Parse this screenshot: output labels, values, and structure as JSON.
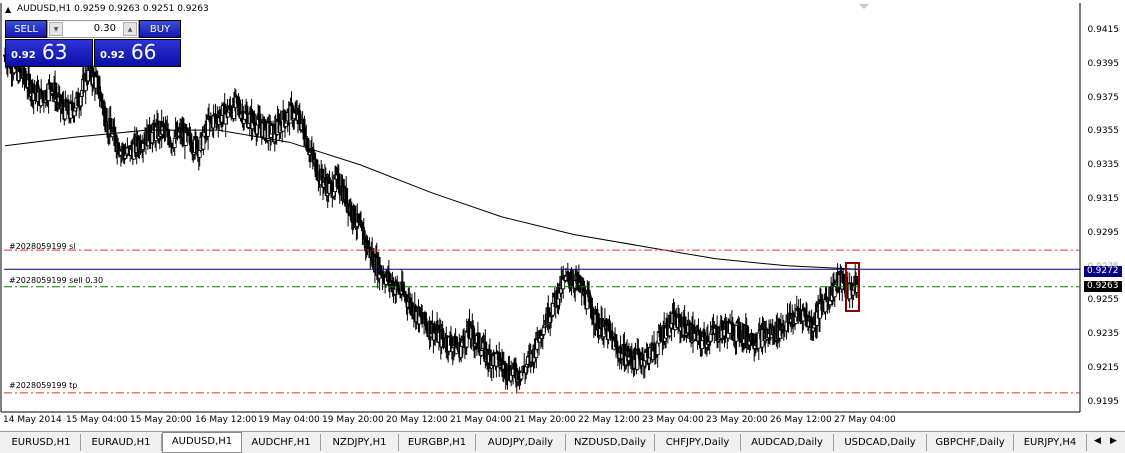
{
  "header": {
    "symbol_tf": "AUDUSD,H1",
    "ohlc": "0.9259 0.9263 0.9251 0.9263"
  },
  "one_click": {
    "sell_label": "SELL",
    "buy_label": "BUY",
    "lot": "0.30",
    "sell_prefix": "0.92",
    "sell_big": "63",
    "buy_prefix": "0.92",
    "buy_big": "66"
  },
  "price_axis": [
    "0.9415",
    "0.9395",
    "0.9375",
    "0.9355",
    "0.9335",
    "0.9315",
    "0.9295",
    "0.9275",
    "0.9255",
    "0.9235",
    "0.9215",
    "0.9195"
  ],
  "price_tags": {
    "ma": "0.9272",
    "bid": "0.9263"
  },
  "order_labels": {
    "sl": "#2028059199 sl",
    "sell": "#2028059199 sell 0.30",
    "tp": "#2028059199 tp"
  },
  "time_axis": [
    "14 May 2014",
    "15 May 04:00",
    "15 May 20:00",
    "16 May 12:00",
    "19 May 04:00",
    "19 May 20:00",
    "20 May 12:00",
    "21 May 04:00",
    "21 May 20:00",
    "22 May 12:00",
    "23 May 04:00",
    "23 May 20:00",
    "26 May 12:00",
    "27 May 04:00"
  ],
  "tabs": [
    "EURUSD,H1",
    "EURAUD,H1",
    "AUDUSD,H1",
    "AUDCHF,H1",
    "NZDJPY,H1",
    "EURGBP,H1",
    "AUDJPY,Daily",
    "NZDUSD,Daily",
    "CHFJPY,Daily",
    "AUDCAD,Daily",
    "USDCAD,Daily",
    "GBPCHF,Daily",
    "EURJPY,H4"
  ],
  "active_tab": "AUDUSD,H1",
  "colors": {
    "sl_tp": "#e0301e",
    "entry": "#008000",
    "ma_line": "#000080",
    "panel": "#1a1fc0",
    "highlight": "#8b0000"
  },
  "chart_data": {
    "type": "candlestick",
    "symbol": "AUDUSD",
    "timeframe": "H1",
    "ylim": [
      0.919,
      0.9425
    ],
    "closes": [
      0.9395,
      0.9388,
      0.9382,
      0.9375,
      0.937,
      0.9378,
      0.9365,
      0.9362,
      0.937,
      0.9386,
      0.9378,
      0.9356,
      0.9345,
      0.9338,
      0.9342,
      0.9348,
      0.935,
      0.9352,
      0.9346,
      0.935,
      0.9345,
      0.9342,
      0.9356,
      0.936,
      0.9362,
      0.9366,
      0.936,
      0.9356,
      0.9352,
      0.935,
      0.9358,
      0.9362,
      0.9356,
      0.9338,
      0.9325,
      0.9318,
      0.9322,
      0.931,
      0.9298,
      0.9286,
      0.9275,
      0.9268,
      0.9262,
      0.9258,
      0.925,
      0.9242,
      0.9238,
      0.9232,
      0.923,
      0.9226,
      0.9236,
      0.923,
      0.9222,
      0.922,
      0.9215,
      0.9212,
      0.9214,
      0.9224,
      0.924,
      0.925,
      0.9262,
      0.9268,
      0.9262,
      0.9252,
      0.924,
      0.9236,
      0.9226,
      0.9222,
      0.922,
      0.9222,
      0.9225,
      0.9236,
      0.9242,
      0.924,
      0.9236,
      0.923,
      0.9234,
      0.9236,
      0.9238,
      0.9236,
      0.9234,
      0.9232,
      0.9234,
      0.9236,
      0.924,
      0.9244,
      0.9248,
      0.924,
      0.925,
      0.9258,
      0.9266,
      0.926,
      0.9263
    ],
    "ma_line": [
      0.9343,
      0.9348,
      0.9352,
      0.9352,
      0.9345,
      0.9332,
      0.9316,
      0.9302,
      0.9292,
      0.9285,
      0.9278,
      0.9274,
      0.9272
    ],
    "levels": {
      "sl": 0.9283,
      "entry": 0.9262,
      "tp": 0.9201,
      "ma_current": 0.9272
    }
  }
}
